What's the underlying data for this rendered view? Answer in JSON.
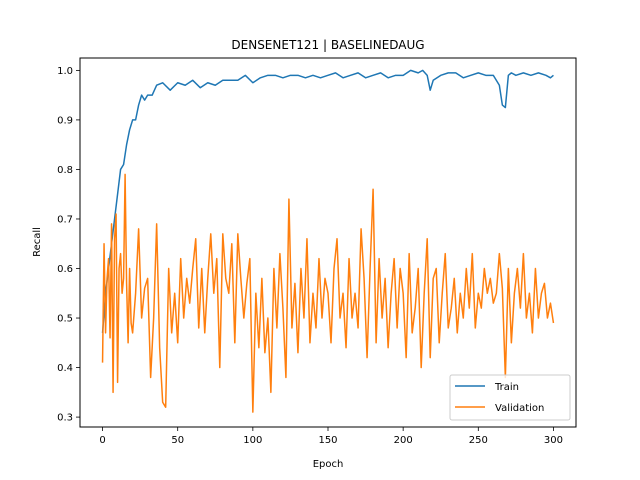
{
  "chart_data": {
    "type": "line",
    "title": "DENSENET121 | BASELINEDAUG",
    "xlabel": "Epoch",
    "ylabel": "Recall",
    "xlim": [
      -15,
      315
    ],
    "ylim": [
      0.28,
      1.025
    ],
    "xticks": [
      0,
      50,
      100,
      150,
      200,
      250,
      300
    ],
    "yticks": [
      0.3,
      0.4,
      0.5,
      0.6,
      0.7,
      0.8,
      0.9,
      1.0
    ],
    "ytick_labels": [
      "0.3",
      "0.4",
      "0.5",
      "0.6",
      "0.7",
      "0.8",
      "0.9",
      "1.0"
    ],
    "grid": false,
    "legend": "lower-right",
    "series": [
      {
        "name": "Train",
        "color": "#1f77b4",
        "x": [
          0,
          2,
          4,
          6,
          8,
          10,
          12,
          14,
          16,
          18,
          20,
          22,
          24,
          26,
          28,
          30,
          33,
          36,
          40,
          45,
          50,
          55,
          60,
          65,
          70,
          75,
          80,
          85,
          90,
          95,
          100,
          105,
          110,
          115,
          120,
          125,
          130,
          135,
          140,
          145,
          150,
          155,
          160,
          165,
          170,
          175,
          180,
          185,
          190,
          195,
          200,
          205,
          210,
          213,
          216,
          218,
          220,
          225,
          230,
          235,
          240,
          245,
          250,
          255,
          260,
          264,
          266,
          268,
          270,
          272,
          275,
          280,
          285,
          290,
          295,
          298,
          300
        ],
        "y": [
          0.47,
          0.55,
          0.6,
          0.65,
          0.7,
          0.75,
          0.8,
          0.81,
          0.85,
          0.88,
          0.9,
          0.9,
          0.93,
          0.95,
          0.94,
          0.95,
          0.95,
          0.97,
          0.975,
          0.96,
          0.975,
          0.97,
          0.98,
          0.965,
          0.975,
          0.97,
          0.98,
          0.98,
          0.98,
          0.99,
          0.975,
          0.985,
          0.99,
          0.99,
          0.985,
          0.99,
          0.99,
          0.985,
          0.99,
          0.985,
          0.99,
          0.995,
          0.985,
          0.99,
          0.995,
          0.985,
          0.99,
          0.995,
          0.985,
          0.99,
          0.99,
          1.0,
          0.995,
          1.0,
          0.99,
          0.96,
          0.98,
          0.99,
          0.995,
          0.995,
          0.985,
          0.99,
          0.995,
          0.99,
          0.99,
          0.97,
          0.93,
          0.925,
          0.99,
          0.995,
          0.99,
          0.995,
          0.99,
          0.995,
          0.99,
          0.985,
          0.99
        ]
      },
      {
        "name": "Validation",
        "color": "#ff7f0e",
        "x": [
          0,
          1,
          2,
          3,
          4,
          5,
          6,
          7,
          8,
          9,
          10,
          11,
          12,
          13,
          14,
          15,
          16,
          17,
          18,
          19,
          20,
          22,
          24,
          26,
          28,
          30,
          32,
          34,
          36,
          38,
          40,
          42,
          44,
          46,
          48,
          50,
          52,
          54,
          56,
          58,
          60,
          62,
          64,
          66,
          68,
          70,
          72,
          74,
          76,
          78,
          80,
          82,
          84,
          86,
          88,
          90,
          92,
          94,
          96,
          98,
          100,
          102,
          104,
          106,
          108,
          110,
          112,
          114,
          116,
          118,
          120,
          122,
          124,
          126,
          128,
          130,
          132,
          134,
          136,
          138,
          140,
          142,
          144,
          146,
          148,
          150,
          152,
          154,
          156,
          158,
          160,
          162,
          164,
          166,
          168,
          170,
          172,
          174,
          176,
          178,
          180,
          182,
          184,
          186,
          188,
          190,
          192,
          194,
          196,
          198,
          200,
          202,
          204,
          206,
          208,
          210,
          212,
          214,
          216,
          218,
          220,
          222,
          224,
          226,
          228,
          230,
          232,
          234,
          236,
          238,
          240,
          242,
          244,
          246,
          248,
          250,
          252,
          254,
          256,
          258,
          260,
          262,
          264,
          266,
          268,
          270,
          272,
          274,
          276,
          278,
          280,
          282,
          284,
          286,
          288,
          290,
          292,
          294,
          296,
          298,
          300
        ],
        "y": [
          0.41,
          0.65,
          0.47,
          0.58,
          0.62,
          0.46,
          0.69,
          0.35,
          0.66,
          0.71,
          0.37,
          0.6,
          0.63,
          0.55,
          0.58,
          0.79,
          0.57,
          0.45,
          0.6,
          0.49,
          0.47,
          0.55,
          0.68,
          0.5,
          0.56,
          0.58,
          0.38,
          0.5,
          0.69,
          0.44,
          0.33,
          0.32,
          0.6,
          0.47,
          0.55,
          0.45,
          0.62,
          0.5,
          0.58,
          0.53,
          0.6,
          0.66,
          0.48,
          0.6,
          0.47,
          0.58,
          0.67,
          0.55,
          0.62,
          0.4,
          0.67,
          0.58,
          0.55,
          0.65,
          0.45,
          0.67,
          0.58,
          0.5,
          0.57,
          0.62,
          0.31,
          0.55,
          0.44,
          0.58,
          0.43,
          0.5,
          0.35,
          0.6,
          0.48,
          0.63,
          0.52,
          0.38,
          0.74,
          0.48,
          0.57,
          0.43,
          0.6,
          0.5,
          0.66,
          0.45,
          0.55,
          0.48,
          0.62,
          0.5,
          0.58,
          0.55,
          0.45,
          0.6,
          0.66,
          0.5,
          0.55,
          0.44,
          0.62,
          0.5,
          0.55,
          0.48,
          0.68,
          0.58,
          0.42,
          0.6,
          0.76,
          0.45,
          0.62,
          0.5,
          0.58,
          0.44,
          0.55,
          0.62,
          0.48,
          0.6,
          0.55,
          0.42,
          0.63,
          0.47,
          0.52,
          0.6,
          0.4,
          0.55,
          0.66,
          0.42,
          0.58,
          0.6,
          0.45,
          0.55,
          0.63,
          0.48,
          0.52,
          0.58,
          0.47,
          0.55,
          0.5,
          0.6,
          0.52,
          0.63,
          0.48,
          0.55,
          0.52,
          0.6,
          0.55,
          0.58,
          0.53,
          0.55,
          0.63,
          0.56,
          0.38,
          0.6,
          0.45,
          0.55,
          0.6,
          0.52,
          0.63,
          0.5,
          0.55,
          0.47,
          0.6,
          0.5,
          0.55,
          0.57,
          0.5,
          0.53,
          0.49
        ]
      }
    ]
  }
}
